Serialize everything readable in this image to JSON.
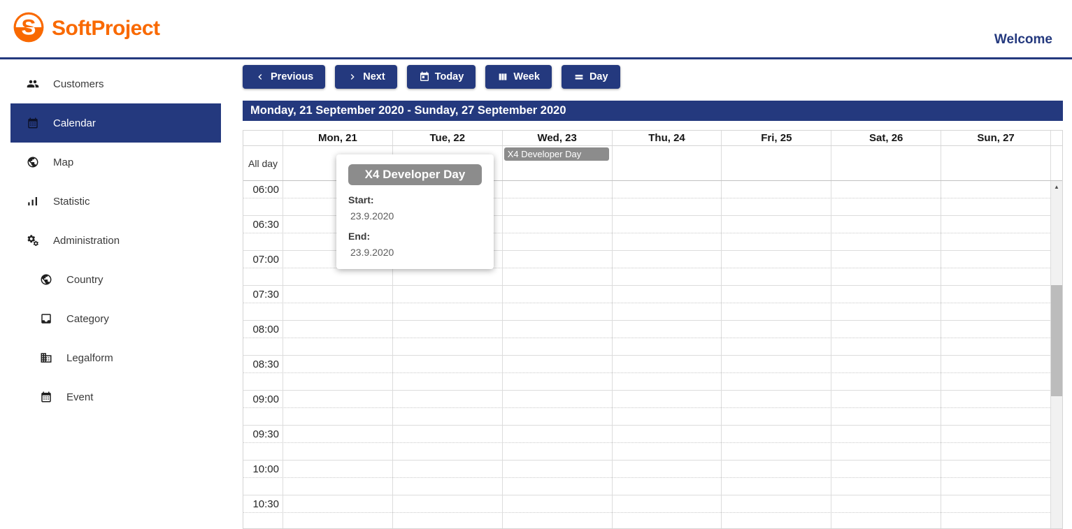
{
  "header": {
    "logo_text": "SoftProject",
    "welcome_text": "Welcome"
  },
  "sidebar": {
    "items": [
      {
        "label": "Customers",
        "icon": "customers-icon",
        "selected": false,
        "indented": false
      },
      {
        "label": "Calendar",
        "icon": "calendar-icon",
        "selected": true,
        "indented": false
      },
      {
        "label": "Map",
        "icon": "globe-icon",
        "selected": false,
        "indented": false
      },
      {
        "label": "Statistic",
        "icon": "bar-chart-icon",
        "selected": false,
        "indented": false
      },
      {
        "label": "Administration",
        "icon": "gears-icon",
        "selected": false,
        "indented": false
      },
      {
        "label": "Country",
        "icon": "globe-icon",
        "selected": false,
        "indented": true
      },
      {
        "label": "Category",
        "icon": "inbox-tray-icon",
        "selected": false,
        "indented": true
      },
      {
        "label": "Legalform",
        "icon": "building-icon",
        "selected": false,
        "indented": true
      },
      {
        "label": "Event",
        "icon": "calendar-icon",
        "selected": false,
        "indented": true
      }
    ]
  },
  "toolbar": {
    "buttons": [
      {
        "label": "Previous",
        "icon": "chevron-left-icon"
      },
      {
        "label": "Next",
        "icon": "chevron-right-icon"
      },
      {
        "label": "Today",
        "icon": "calendar-today-icon"
      },
      {
        "label": "Week",
        "icon": "week-columns-icon"
      },
      {
        "label": "Day",
        "icon": "day-rows-icon"
      }
    ]
  },
  "calendar": {
    "range_title": "Monday, 21 September 2020 - Sunday, 27 September 2020",
    "all_day_label": "All day",
    "day_headers": [
      "Mon, 21",
      "Tue, 22",
      "Wed, 23",
      "Thu, 24",
      "Fri, 25",
      "Sat, 26",
      "Sun, 27"
    ],
    "time_slots": [
      "06:00",
      "06:30",
      "07:00",
      "07:30",
      "08:00",
      "08:30",
      "09:00",
      "09:30",
      "10:00",
      "10:30"
    ],
    "all_day_event": {
      "title": "X4 Developer Day",
      "day": "Wed, 23"
    }
  },
  "tooltip": {
    "title": "X4 Developer Day",
    "start_label": "Start:",
    "start_value": "23.9.2020",
    "end_label": "End:",
    "end_value": "23.9.2020"
  },
  "scrollbar": {
    "up_arrow": "▲"
  },
  "colors": {
    "navy": "#24397e",
    "orange": "#f96900",
    "event_gray": "#8c8c8c",
    "grid_line": "#dcdcdc"
  }
}
